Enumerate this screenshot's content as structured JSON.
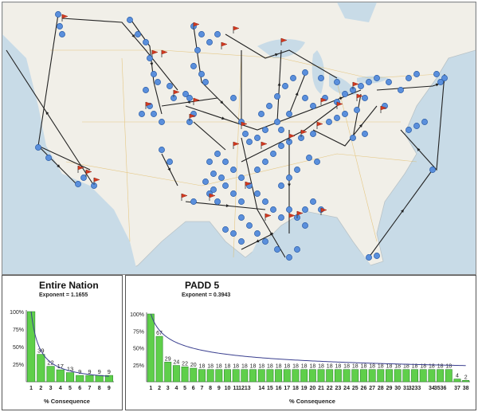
{
  "colors": {
    "bar_fill": "#5fcf4a",
    "bar_stroke": "#2e8b2e",
    "curve": "#3a3f8f",
    "node": "#5a8fdc",
    "flag": "#d23a20",
    "land": "#f1efe8",
    "water": "#c8dbe7",
    "road": "#e0b75a"
  },
  "icons": {
    "node": "blue-dot-node-icon",
    "flag": "red-flag-icon"
  },
  "charts": [
    {
      "id": "entire-nation",
      "title": "Entire Nation",
      "exponent_label": "Exponent = 1.1655",
      "xlabel": "% Consequence",
      "yticks": [
        "100%",
        "75%",
        "50%",
        "25%"
      ],
      "chart_data": {
        "type": "bar",
        "categories": [
          "1",
          "2",
          "3",
          "4",
          "5",
          "6",
          "7",
          "8",
          "9"
        ],
        "values": [
          100,
          39,
          22,
          17,
          13,
          9,
          9,
          9,
          9
        ],
        "data_labels": [
          "",
          "39",
          "22",
          "17",
          "13",
          "9",
          "9",
          "9",
          "9"
        ],
        "ylim": [
          0,
          100
        ]
      }
    },
    {
      "id": "padd-5",
      "title": "PADD 5",
      "exponent_label": "Exponent = 0.3943",
      "xlabel": "% Consequence",
      "yticks": [
        "100%",
        "75%",
        "50%",
        "25%"
      ],
      "chart_data": {
        "type": "bar",
        "categories": [
          "1",
          "2",
          "3",
          "4",
          "5",
          "6",
          "7",
          "8",
          "9",
          "10",
          "11",
          "12",
          "13",
          "14",
          "15",
          "16",
          "17",
          "18",
          "19",
          "20",
          "21",
          "22",
          "23",
          "24",
          "25",
          "26",
          "27",
          "28",
          "29",
          "30",
          "31",
          "32",
          "33",
          "34",
          "35",
          "36",
          "37",
          "38"
        ],
        "tick_labels": [
          "1",
          "2",
          "3",
          "4",
          "5",
          "6",
          "7",
          "8",
          "9",
          "10",
          "11",
          "1213",
          "",
          "14",
          "15",
          "16",
          "17",
          "18",
          "19",
          "20",
          "21",
          "22",
          "23",
          "24",
          "25",
          "26",
          "27",
          "28",
          "29",
          "30",
          "31",
          "3233",
          "",
          "34",
          "3536",
          "",
          "37",
          "38"
        ],
        "values": [
          100,
          67,
          29,
          24,
          22,
          20,
          18,
          18,
          18,
          18,
          18,
          18,
          18,
          18,
          18,
          18,
          18,
          18,
          18,
          18,
          18,
          18,
          18,
          18,
          18,
          18,
          18,
          18,
          18,
          18,
          18,
          18,
          18,
          18,
          18,
          18,
          4,
          2
        ],
        "data_labels": [
          "",
          "67",
          "29",
          "24",
          "22",
          "20",
          "18",
          "18",
          "18",
          "18",
          "18",
          "18",
          "18",
          "18",
          "18",
          "18",
          "18",
          "18",
          "18",
          "18",
          "18",
          "18",
          "18",
          "18",
          "18",
          "18",
          "18",
          "18",
          "18",
          "18",
          "18",
          "18",
          "18",
          "18",
          "18",
          "18",
          "4",
          "2"
        ],
        "ylim": [
          0,
          100
        ]
      }
    }
  ]
}
